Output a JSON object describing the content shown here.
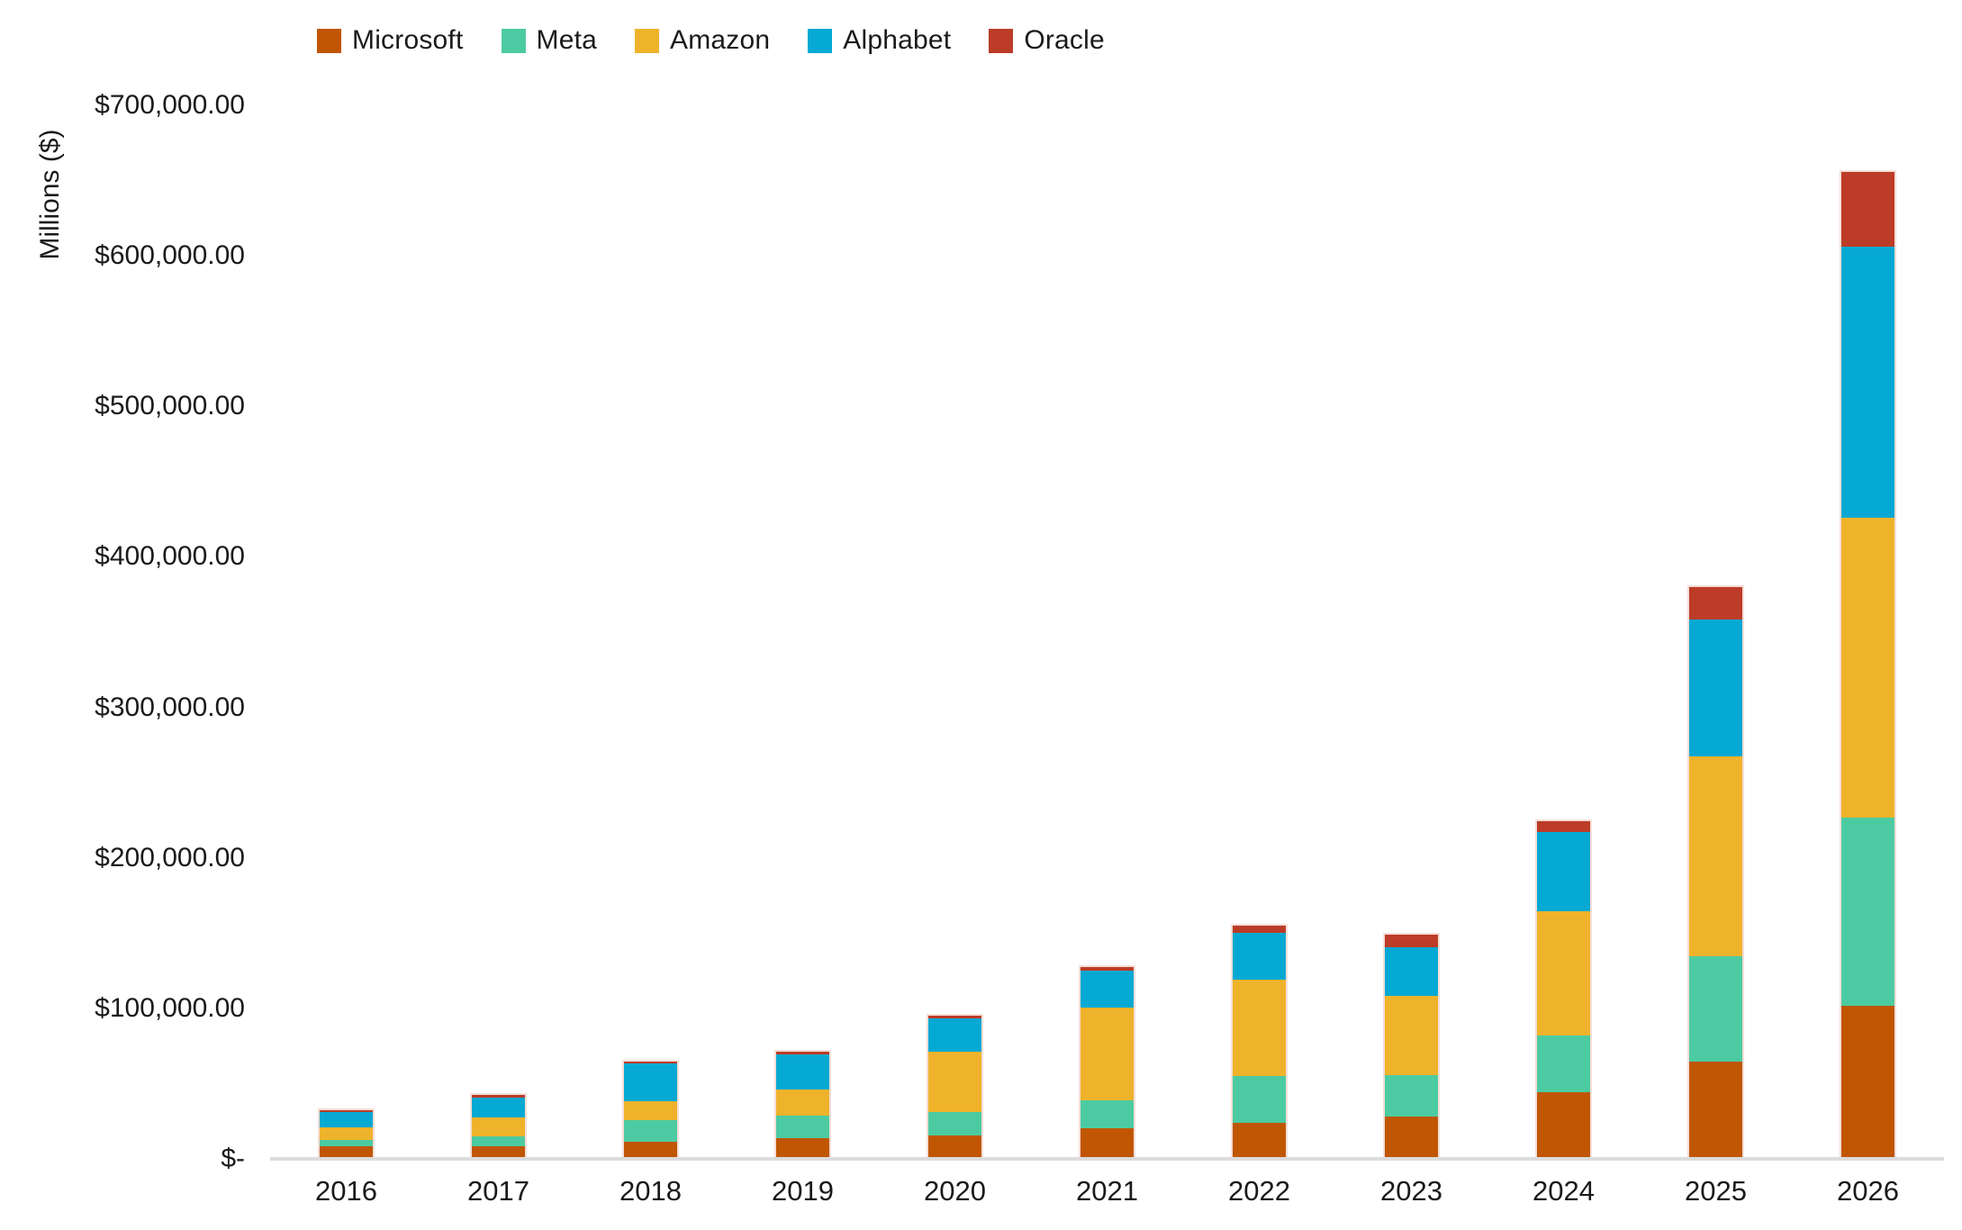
{
  "colors": {
    "background": "#FFFFFF",
    "axis_line": "#DCDCDC",
    "text": "#1A1A1A"
  },
  "chart_data": {
    "type": "bar",
    "stacked": true,
    "title": "",
    "xlabel": "",
    "ylabel": "Millions ($)",
    "grid": false,
    "legend_position": "top",
    "ylim": [
      0,
      700000
    ],
    "categories": [
      "2016",
      "2017",
      "2018",
      "2019",
      "2020",
      "2021",
      "2022",
      "2023",
      "2024",
      "2025",
      "2026"
    ],
    "series": [
      {
        "name": "Microsoft",
        "color": "#C05602",
        "values": [
          8300,
          8100,
          11600,
          13900,
          15400,
          20600,
          23900,
          28100,
          44500,
          64600,
          102000
        ]
      },
      {
        "name": "Meta",
        "color": "#4CCBA2",
        "values": [
          4500,
          6700,
          13900,
          15100,
          15700,
          18600,
          31400,
          27300,
          37300,
          70000,
          125000
        ]
      },
      {
        "name": "Amazon",
        "color": "#EFB32B",
        "values": [
          8000,
          12500,
          12600,
          17200,
          40100,
          61100,
          63600,
          52700,
          83000,
          133000,
          199000
        ]
      },
      {
        "name": "Alphabet",
        "color": "#06A9D3",
        "values": [
          10200,
          13200,
          25100,
          23500,
          22300,
          24600,
          31500,
          32300,
          52500,
          91000,
          180000
        ]
      },
      {
        "name": "Oracle",
        "color": "#BC3C28",
        "values": [
          1200,
          2000,
          1700,
          1700,
          1600,
          2800,
          4500,
          8700,
          6900,
          21500,
          50000
        ]
      }
    ],
    "yticks": [
      {
        "value": 700000,
        "label": "$700,000.00"
      },
      {
        "value": 600000,
        "label": "$600,000.00"
      },
      {
        "value": 500000,
        "label": "$500,000.00"
      },
      {
        "value": 400000,
        "label": "$400,000.00"
      },
      {
        "value": 300000,
        "label": "$300,000.00"
      },
      {
        "value": 200000,
        "label": "$200,000.00"
      },
      {
        "value": 100000,
        "label": "$100,000.00"
      },
      {
        "value": 0,
        "label": "$-"
      }
    ]
  }
}
